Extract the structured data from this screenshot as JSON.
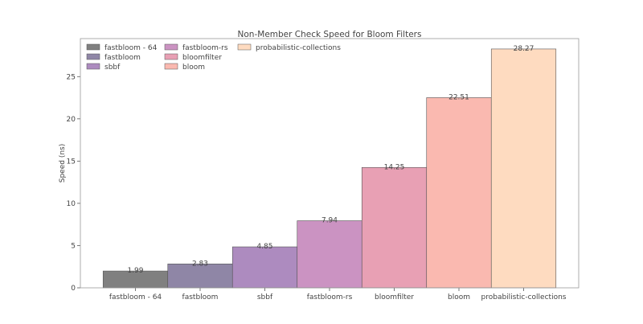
{
  "chart_data": {
    "type": "bar",
    "title": "Non-Member Check Speed for Bloom Filters",
    "xlabel": "",
    "ylabel": "Speed (ns)",
    "ylim": [
      0,
      29.5
    ],
    "yticks": [
      0,
      5,
      10,
      15,
      20,
      25
    ],
    "grid": false,
    "legend_position": "top-left",
    "categories": [
      "fastbloom - 64",
      "fastbloom",
      "sbbf",
      "fastbloom-rs",
      "bloomfilter",
      "bloom",
      "probabilistic-collections"
    ],
    "values": [
      1.99,
      2.83,
      4.85,
      7.94,
      14.25,
      22.51,
      28.27
    ],
    "value_labels": [
      "1.99",
      "2.83",
      "4.85",
      "7.94",
      "14.25",
      "22.51",
      "28.27"
    ],
    "colors": [
      "#808080",
      "#8f86a6",
      "#ad8bbf",
      "#cb93c2",
      "#e8a0b4",
      "#fab9b0",
      "#fedbc0"
    ],
    "legend": [
      "fastbloom - 64",
      "fastbloom",
      "sbbf",
      "fastbloom-rs",
      "bloomfilter",
      "bloom",
      "probabilistic-collections"
    ]
  }
}
